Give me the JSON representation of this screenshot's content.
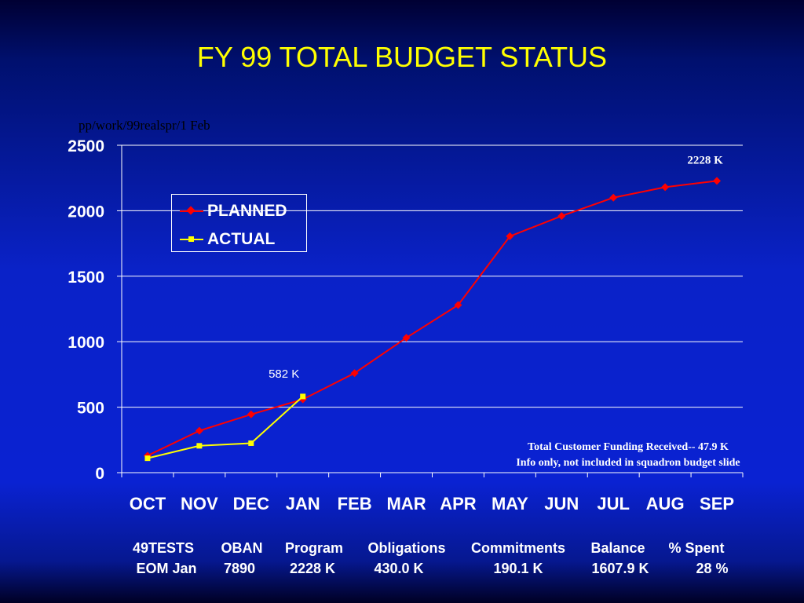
{
  "slide": {
    "title": "FY 99 TOTAL BUDGET STATUS",
    "file_path": "pp/work/99realspr/1 Feb"
  },
  "chart_data": {
    "type": "line",
    "categories": [
      "OCT",
      "NOV",
      "DEC",
      "JAN",
      "FEB",
      "MAR",
      "APR",
      "MAY",
      "JUN",
      "JUL",
      "AUG",
      "SEP"
    ],
    "series": [
      {
        "name": "PLANNED",
        "color": "#ff0000",
        "marker": "diamond",
        "values": [
          130,
          320,
          445,
          560,
          760,
          1030,
          1280,
          1805,
          1960,
          2100,
          2180,
          2228
        ]
      },
      {
        "name": "ACTUAL",
        "color": "#ffff00",
        "marker": "square",
        "values": [
          110,
          205,
          225,
          582,
          null,
          null,
          null,
          null,
          null,
          null,
          null,
          null
        ]
      }
    ],
    "yticks": [
      0,
      500,
      1000,
      1500,
      2000,
      2500
    ],
    "ylim": [
      0,
      2500
    ],
    "grid": true,
    "legend_position": "upper-left",
    "annotations": [
      {
        "text": "582 K",
        "series": "ACTUAL",
        "category": "JAN"
      },
      {
        "text": "2228 K",
        "series": "PLANNED",
        "category": "SEP"
      }
    ]
  },
  "notes": {
    "line1": "Total Customer Funding Received-- 47.9 K",
    "line2": "Info only, not included in squadron budget slide"
  },
  "summary": {
    "headers": [
      "49TESTS",
      "OBAN",
      "Program",
      "Obligations",
      "Commitments",
      "Balance",
      "% Spent"
    ],
    "values": [
      "EOM Jan",
      "7890",
      "2228 K",
      "430.0 K",
      "190.1 K",
      "1607.9 K",
      "28 %"
    ]
  }
}
